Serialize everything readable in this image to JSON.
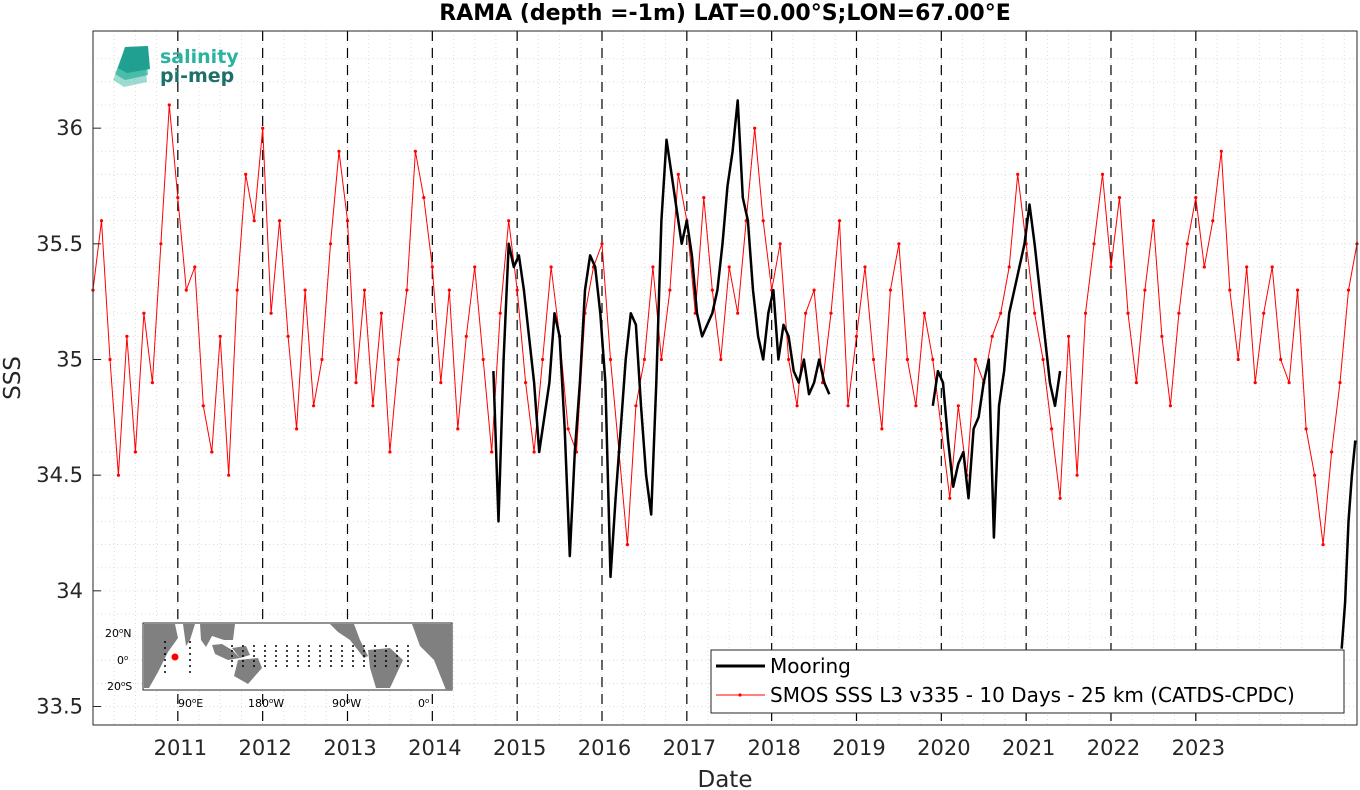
{
  "chart_data": {
    "type": "line",
    "title": "RAMA (depth =-1m) LAT=0.00°S;LON=67.00°E",
    "xlabel": "Date",
    "ylabel": "SSS",
    "xlim": [
      2010.0,
      2024.9
    ],
    "ylim": [
      33.42,
      36.42
    ],
    "yticks": [
      "33.5",
      "34",
      "34.5",
      "35",
      "35.5",
      "36"
    ],
    "yticks_values": [
      33.5,
      34,
      34.5,
      35,
      35.5,
      36
    ],
    "xticks": [
      "2011",
      "2012",
      "2013",
      "2014",
      "2015",
      "2016",
      "2017",
      "2018",
      "2019",
      "2020",
      "2021",
      "2022",
      "2023"
    ],
    "grid": true,
    "year_lines": [
      2011,
      2012,
      2013,
      2014,
      2015,
      2016,
      2017,
      2018,
      2019,
      2020,
      2021,
      2022,
      2023
    ],
    "legend_position": "bottom-right",
    "series": [
      {
        "name": "Mooring",
        "color": "#000000",
        "style": "line",
        "segments": [
          {
            "x": [
              2014.72,
              2014.78,
              2014.84,
              2014.9,
              2014.96,
              2015.02,
              2015.08,
              2015.14,
              2015.2,
              2015.26,
              2015.32,
              2015.38,
              2015.44,
              2015.5,
              2015.56,
              2015.62,
              2015.68,
              2015.74,
              2015.8,
              2015.86,
              2015.92,
              2015.98,
              2016.04,
              2016.1,
              2016.16,
              2016.22,
              2016.28,
              2016.34,
              2016.4,
              2016.46,
              2016.52,
              2016.58,
              2016.64,
              2016.7,
              2016.76,
              2016.82,
              2016.88,
              2016.94,
              2017.0,
              2017.06,
              2017.12,
              2017.18,
              2017.24,
              2017.3,
              2017.36,
              2017.42,
              2017.48,
              2017.54,
              2017.6,
              2017.66,
              2017.72,
              2017.78,
              2017.84,
              2017.9,
              2017.96,
              2018.02,
              2018.08,
              2018.14,
              2018.2,
              2018.26,
              2018.32,
              2018.38,
              2018.44,
              2018.5,
              2018.56,
              2018.62,
              2018.68
            ],
            "y": [
              34.95,
              34.3,
              35.0,
              35.5,
              35.4,
              35.45,
              35.3,
              35.1,
              34.9,
              34.6,
              34.75,
              34.9,
              35.2,
              35.1,
              34.7,
              34.15,
              34.6,
              34.9,
              35.3,
              35.45,
              35.4,
              35.2,
              34.9,
              34.06,
              34.4,
              34.7,
              35.0,
              35.2,
              35.15,
              34.8,
              34.5,
              34.33,
              34.9,
              35.6,
              35.95,
              35.8,
              35.65,
              35.5,
              35.6,
              35.45,
              35.2,
              35.1,
              35.15,
              35.2,
              35.3,
              35.5,
              35.75,
              35.9,
              36.12,
              35.7,
              35.6,
              35.3,
              35.1,
              35.0,
              35.2,
              35.3,
              35.0,
              35.15,
              35.1,
              34.95,
              34.9,
              35.0,
              34.85,
              34.9,
              35.0,
              34.9,
              34.85
            ]
          },
          {
            "x": [
              2019.9,
              2019.96,
              2020.02,
              2020.08,
              2020.14,
              2020.2,
              2020.26,
              2020.32,
              2020.38,
              2020.44,
              2020.5,
              2020.56,
              2020.62,
              2020.68,
              2020.74,
              2020.8,
              2020.86,
              2020.92,
              2020.98,
              2021.04,
              2021.1,
              2021.16,
              2021.22,
              2021.28,
              2021.34,
              2021.4
            ],
            "y": [
              34.8,
              34.95,
              34.9,
              34.65,
              34.45,
              34.55,
              34.6,
              34.4,
              34.7,
              34.75,
              34.9,
              35.0,
              34.23,
              34.8,
              34.95,
              35.2,
              35.3,
              35.4,
              35.5,
              35.67,
              35.5,
              35.3,
              35.1,
              34.9,
              34.8,
              34.95
            ]
          },
          {
            "x": [
              2024.72,
              2024.76,
              2024.8,
              2024.84,
              2024.88
            ],
            "y": [
              33.75,
              33.95,
              34.3,
              34.5,
              34.65
            ]
          }
        ]
      },
      {
        "name": "SMOS SSS L3 v335 - 10 Days - 25 km (CATDS-CPDC)",
        "color": "#ff0000",
        "style": "line-markers",
        "x": [
          2010.0,
          2010.1,
          2010.2,
          2010.3,
          2010.4,
          2010.5,
          2010.6,
          2010.7,
          2010.8,
          2010.9,
          2011.0,
          2011.1,
          2011.2,
          2011.3,
          2011.4,
          2011.5,
          2011.6,
          2011.7,
          2011.8,
          2011.9,
          2012.0,
          2012.1,
          2012.2,
          2012.3,
          2012.4,
          2012.5,
          2012.6,
          2012.7,
          2012.8,
          2012.9,
          2013.0,
          2013.1,
          2013.2,
          2013.3,
          2013.4,
          2013.5,
          2013.6,
          2013.7,
          2013.8,
          2013.9,
          2014.0,
          2014.1,
          2014.2,
          2014.3,
          2014.4,
          2014.5,
          2014.6,
          2014.7,
          2014.8,
          2014.9,
          2015.0,
          2015.1,
          2015.2,
          2015.3,
          2015.4,
          2015.5,
          2015.6,
          2015.7,
          2015.8,
          2015.9,
          2016.0,
          2016.1,
          2016.2,
          2016.3,
          2016.4,
          2016.5,
          2016.6,
          2016.7,
          2016.8,
          2016.9,
          2017.0,
          2017.1,
          2017.2,
          2017.3,
          2017.4,
          2017.5,
          2017.6,
          2017.7,
          2017.8,
          2017.9,
          2018.0,
          2018.1,
          2018.2,
          2018.3,
          2018.4,
          2018.5,
          2018.6,
          2018.7,
          2018.8,
          2018.9,
          2019.0,
          2019.1,
          2019.2,
          2019.3,
          2019.4,
          2019.5,
          2019.6,
          2019.7,
          2019.8,
          2019.9,
          2020.0,
          2020.1,
          2020.2,
          2020.3,
          2020.4,
          2020.5,
          2020.6,
          2020.7,
          2020.8,
          2020.9,
          2021.0,
          2021.1,
          2021.2,
          2021.3,
          2021.4,
          2021.5,
          2021.6,
          2021.7,
          2021.8,
          2021.9,
          2022.0,
          2022.1,
          2022.2,
          2022.3,
          2022.4,
          2022.5,
          2022.6,
          2022.7,
          2022.8,
          2022.9,
          2023.0,
          2023.1,
          2023.2,
          2023.3,
          2023.4,
          2023.5,
          2023.6,
          2023.7,
          2023.8,
          2023.9,
          2024.0,
          2024.1,
          2024.2,
          2024.3,
          2024.4,
          2024.5,
          2024.6,
          2024.7,
          2024.8,
          2024.9
        ],
        "y": [
          35.3,
          35.6,
          35.0,
          34.5,
          35.1,
          34.6,
          35.2,
          34.9,
          35.5,
          36.1,
          35.7,
          35.3,
          35.4,
          34.8,
          34.6,
          35.1,
          34.5,
          35.3,
          35.8,
          35.6,
          36.0,
          35.2,
          35.6,
          35.1,
          34.7,
          35.3,
          34.8,
          35.0,
          35.5,
          35.9,
          35.6,
          34.9,
          35.3,
          34.8,
          35.2,
          34.6,
          35.0,
          35.3,
          35.9,
          35.7,
          35.4,
          34.9,
          35.3,
          34.7,
          35.1,
          35.4,
          35.0,
          34.6,
          35.2,
          35.6,
          35.3,
          34.9,
          34.6,
          35.0,
          35.4,
          35.1,
          34.7,
          34.6,
          35.2,
          35.4,
          35.5,
          35.0,
          34.6,
          34.2,
          34.8,
          35.0,
          35.4,
          35.0,
          35.3,
          35.8,
          35.6,
          35.2,
          35.7,
          35.3,
          35.0,
          35.4,
          35.2,
          35.6,
          36.0,
          35.6,
          35.3,
          35.5,
          35.0,
          34.8,
          35.2,
          35.3,
          34.9,
          35.2,
          35.6,
          34.8,
          35.1,
          35.4,
          35.0,
          34.7,
          35.3,
          35.5,
          35.0,
          34.8,
          35.2,
          35.0,
          34.7,
          34.4,
          34.8,
          34.5,
          35.0,
          34.9,
          35.1,
          35.2,
          35.4,
          35.8,
          35.5,
          35.2,
          35.0,
          34.7,
          34.4,
          35.1,
          34.5,
          35.2,
          35.5,
          35.8,
          35.4,
          35.7,
          35.2,
          34.9,
          35.3,
          35.6,
          35.1,
          34.8,
          35.2,
          35.5,
          35.7,
          35.4,
          35.6,
          35.9,
          35.3,
          35.0,
          35.4,
          34.9,
          35.2,
          35.4,
          35.0,
          34.9,
          35.3,
          34.7,
          34.5,
          34.2,
          34.6,
          34.9,
          35.3,
          35.5
        ]
      }
    ]
  },
  "inset_map": {
    "lat_labels": [
      "20",
      "0",
      "20"
    ],
    "lat_hemi": [
      "N",
      "",
      "S"
    ],
    "lon_labels": [
      "90",
      "180",
      "90",
      "0"
    ],
    "lon_hemi": [
      "E",
      "W",
      "W",
      ""
    ],
    "deg": "o",
    "land_color": "#808080",
    "ocean_color": "#ffffff",
    "marker_color": "#ff0000"
  },
  "logo": {
    "line1": "salinity",
    "line2": "pi-mep",
    "color1": "#2bb3a0",
    "color2": "#1f6f6a"
  }
}
